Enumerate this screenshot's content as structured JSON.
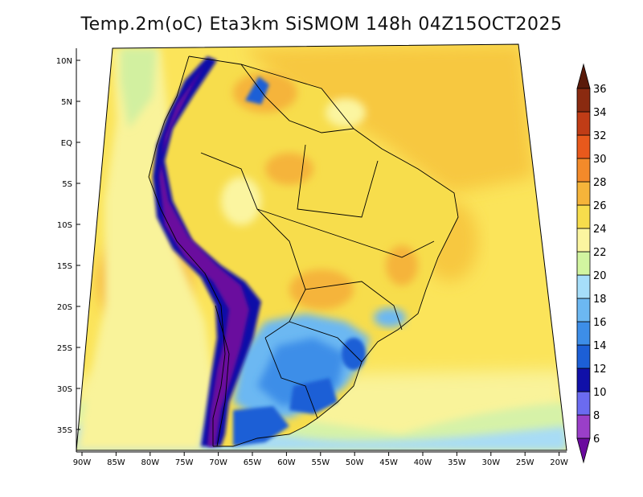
{
  "title": "Temp.2m(oC) Eta3km SiSMOM 148h 04Z15OCT2025",
  "axes": {
    "lat_labels": [
      "10N",
      "5N",
      "EQ",
      "5S",
      "10S",
      "15S",
      "20S",
      "25S",
      "30S",
      "35S"
    ],
    "lon_labels": [
      "90W",
      "85W",
      "80W",
      "75W",
      "70W",
      "65W",
      "60W",
      "55W",
      "50W",
      "45W",
      "40W",
      "35W",
      "30W",
      "25W",
      "20W"
    ]
  },
  "colorbar": {
    "units": "oC",
    "levels": [
      "6",
      "8",
      "10",
      "12",
      "14",
      "16",
      "18",
      "20",
      "22",
      "24",
      "26",
      "28",
      "30",
      "32",
      "34",
      "36"
    ],
    "colors": [
      "#6a0a9e",
      "#9a3fc8",
      "#6b6bf0",
      "#1010a8",
      "#1c5fd6",
      "#3d8ee8",
      "#6cb8f2",
      "#a6defa",
      "#d2f5a0",
      "#fbf5a0",
      "#f7dd4c",
      "#f5b43a",
      "#f38a2a",
      "#e8591c",
      "#c03c16",
      "#8a2a10",
      "#5a1a0a"
    ]
  }
}
